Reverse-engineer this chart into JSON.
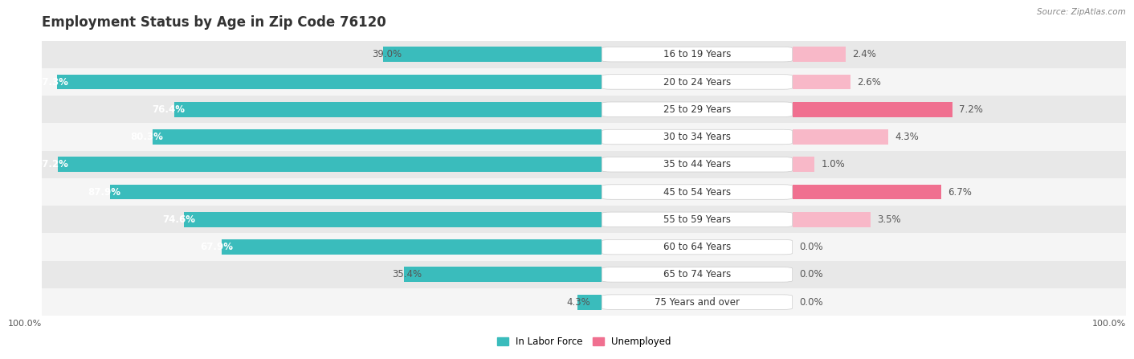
{
  "title": "Employment Status by Age in Zip Code 76120",
  "source": "Source: ZipAtlas.com",
  "categories": [
    "16 to 19 Years",
    "20 to 24 Years",
    "25 to 29 Years",
    "30 to 34 Years",
    "35 to 44 Years",
    "45 to 54 Years",
    "55 to 59 Years",
    "60 to 64 Years",
    "65 to 74 Years",
    "75 Years and over"
  ],
  "labor_force": [
    39.0,
    97.3,
    76.4,
    80.3,
    97.2,
    87.9,
    74.6,
    67.9,
    35.4,
    4.3
  ],
  "unemployed": [
    2.4,
    2.6,
    7.2,
    4.3,
    1.0,
    6.7,
    3.5,
    0.0,
    0.0,
    0.0
  ],
  "labor_force_color": "#3abcbc",
  "unemployed_color": "#f07090",
  "unemployed_light_color": "#f8b8c8",
  "row_bg_dark": "#e8e8e8",
  "row_bg_light": "#f5f5f5",
  "bar_height": 0.55,
  "lf_max": 100,
  "un_max": 15,
  "legend_labor": "In Labor Force",
  "legend_unemployed": "Unemployed",
  "title_fontsize": 12,
  "label_fontsize": 8.5,
  "value_fontsize": 8.5,
  "tick_fontsize": 8
}
